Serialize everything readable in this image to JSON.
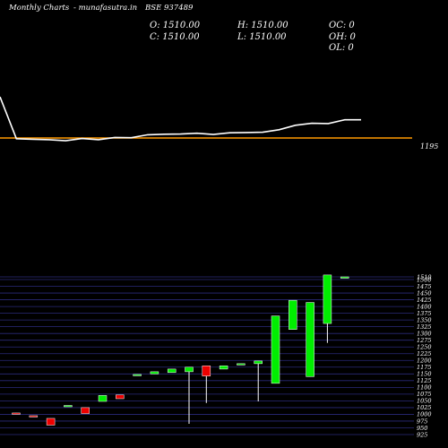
{
  "header": {
    "monthly": "Monthly Charts",
    "source": "- munafasutra.in",
    "symbol": "BSE 937489",
    "o": "O: 1510.00",
    "h": "H: 1510.00",
    "oc": "OC: 0",
    "c": "C: 1510.00",
    "l": "L: 1510.00",
    "oh": "OH: 0",
    "ol": "OL: 0"
  },
  "colors": {
    "background": "#000000",
    "up": "#00ee00",
    "down": "#ee0000",
    "grid": "#2a2a7a",
    "line": "#ffffff",
    "ref_line": "#ff9900"
  },
  "chart_data": [
    {
      "type": "line",
      "name": "top-panel-line",
      "y": [
        1360,
        1192,
        1190,
        1188,
        1184,
        1193,
        1188,
        1197,
        1196,
        1208,
        1210,
        1211,
        1214,
        1209,
        1216,
        1217,
        1218,
        1228,
        1246,
        1254,
        1253,
        1268,
        1268
      ],
      "reference_line": {
        "value": 1195,
        "label": "1195"
      }
    },
    {
      "type": "candlestick",
      "name": "monthly-candles",
      "ylim": [
        925,
        1510
      ],
      "y_ticks": [
        925,
        950,
        975,
        1000,
        1025,
        1050,
        1075,
        1100,
        1125,
        1150,
        1175,
        1200,
        1225,
        1250,
        1275,
        1300,
        1325,
        1350,
        1375,
        1400,
        1425,
        1450,
        1475,
        1500,
        1510
      ],
      "y_tick_labels": [
        "925",
        "950",
        "975",
        "1000",
        "1025",
        "1050",
        "1075",
        "1100",
        "1125",
        "1150",
        "1175",
        "1200",
        "1225",
        "1250",
        "1275",
        "1300",
        "1325",
        "1350",
        "1375",
        "1400",
        "1425",
        "1450",
        "1475",
        "1500",
        "1510"
      ],
      "candles": [
        {
          "o": 1005,
          "h": 1005,
          "l": 1003,
          "c": 1003
        },
        {
          "o": 995,
          "h": 995,
          "l": 993,
          "c": 993
        },
        {
          "o": 985,
          "h": 985,
          "l": 960,
          "c": 960
        },
        {
          "o": 1030,
          "h": 1033,
          "l": 1030,
          "c": 1033
        },
        {
          "o": 1025,
          "h": 1025,
          "l": 1003,
          "c": 1003
        },
        {
          "o": 1048,
          "h": 1070,
          "l": 1048,
          "c": 1070
        },
        {
          "o": 1072,
          "h": 1072,
          "l": 1058,
          "c": 1058
        },
        {
          "o": 1145,
          "h": 1148,
          "l": 1145,
          "c": 1148
        },
        {
          "o": 1150,
          "h": 1158,
          "l": 1150,
          "c": 1158
        },
        {
          "o": 1155,
          "h": 1168,
          "l": 1155,
          "c": 1168
        },
        {
          "o": 1158,
          "h": 1175,
          "l": 965,
          "c": 1175
        },
        {
          "o": 1180,
          "h": 1180,
          "l": 1042,
          "c": 1142
        },
        {
          "o": 1168,
          "h": 1180,
          "l": 1168,
          "c": 1180
        },
        {
          "o": 1185,
          "h": 1188,
          "l": 1185,
          "c": 1188
        },
        {
          "o": 1188,
          "h": 1198,
          "l": 1048,
          "c": 1198
        },
        {
          "o": 1115,
          "h": 1365,
          "l": 1115,
          "c": 1365
        },
        {
          "o": 1315,
          "h": 1423,
          "l": 1315,
          "c": 1423
        },
        {
          "o": 1140,
          "h": 1415,
          "l": 1140,
          "c": 1415
        },
        {
          "o": 1337,
          "h": 1517,
          "l": 1265,
          "c": 1517
        },
        {
          "o": 1510,
          "h": 1510,
          "l": 1510,
          "c": 1510
        }
      ]
    }
  ]
}
